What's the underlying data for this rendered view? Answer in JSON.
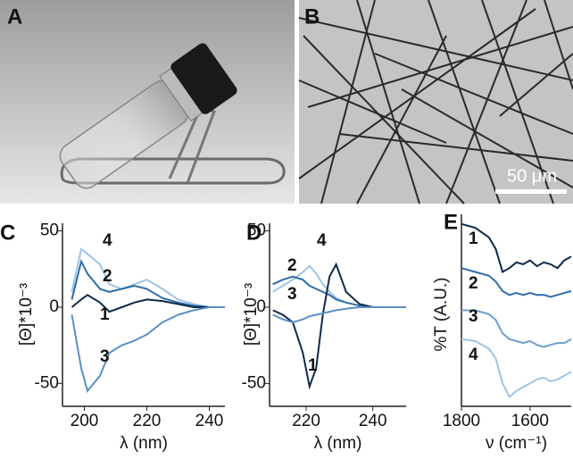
{
  "panel_a": {
    "label": "A"
  },
  "panel_b": {
    "label": "B",
    "scale_bar": "50 μm"
  },
  "chart_data": [
    {
      "type": "line",
      "panel": "C",
      "xlabel": "λ (nm)",
      "ylabel": "[Θ]*10⁻³",
      "xlim": [
        193,
        245
      ],
      "xticks": [
        200,
        220,
        240
      ],
      "ylim": [
        -65,
        55
      ],
      "yticks": [
        50,
        0,
        -50
      ],
      "x": [
        196,
        199,
        201,
        205,
        208,
        212,
        216,
        220,
        225,
        230,
        235,
        240,
        245
      ],
      "series": [
        {
          "name": "4",
          "color": "#9cc4e8",
          "values": [
            10,
            38,
            35,
            28,
            15,
            12,
            15,
            18,
            12,
            5,
            2,
            0,
            0
          ]
        },
        {
          "name": "2",
          "color": "#2f6da8",
          "values": [
            5,
            30,
            22,
            12,
            10,
            12,
            14,
            12,
            6,
            3,
            1,
            0,
            0
          ]
        },
        {
          "name": "1",
          "color": "#0d2a4a",
          "values": [
            0,
            5,
            8,
            3,
            -3,
            0,
            3,
            5,
            4,
            2,
            0,
            0,
            0
          ]
        },
        {
          "name": "3",
          "color": "#5a8fc6",
          "values": [
            -5,
            -40,
            -55,
            -45,
            -30,
            -25,
            -22,
            -18,
            -10,
            -5,
            -2,
            0,
            0
          ]
        }
      ]
    },
    {
      "type": "line",
      "panel": "D",
      "xlabel": "λ (nm)",
      "ylabel": "[Θ]*10⁻³",
      "xlim": [
        209,
        250
      ],
      "xticks": [
        220,
        240
      ],
      "ylim": [
        -65,
        55
      ],
      "yticks": [
        50,
        0,
        -50
      ],
      "x": [
        210,
        213,
        216,
        219,
        221,
        223,
        225,
        227,
        229,
        232,
        236,
        240,
        245,
        250
      ],
      "series": [
        {
          "name": "4",
          "color": "#9cc4e8",
          "values": [
            10,
            14,
            18,
            23,
            27,
            22,
            15,
            10,
            6,
            3,
            1,
            0,
            0,
            0
          ]
        },
        {
          "name": "2",
          "color": "#2f6da8",
          "values": [
            15,
            18,
            20,
            18,
            14,
            12,
            10,
            8,
            5,
            3,
            1,
            0,
            0,
            0
          ]
        },
        {
          "name": "1",
          "color": "#0d2a4a",
          "values": [
            -2,
            -5,
            -10,
            -30,
            -52,
            -40,
            -5,
            20,
            28,
            10,
            2,
            0,
            0,
            0
          ]
        },
        {
          "name": "3",
          "color": "#5a8fc6",
          "values": [
            -5,
            -8,
            -10,
            -8,
            -6,
            -5,
            -4,
            -3,
            -2,
            -1,
            0,
            0,
            0,
            0
          ]
        }
      ]
    },
    {
      "type": "line",
      "panel": "E",
      "xlabel": "ν (cm⁻¹)",
      "ylabel": "%T (A.U.)",
      "xlim": [
        1800,
        1480
      ],
      "xticks": [
        1800,
        1600
      ],
      "ylim": [
        0,
        100
      ],
      "x": [
        1800,
        1760,
        1720,
        1700,
        1680,
        1660,
        1640,
        1620,
        1600,
        1580,
        1560,
        1540,
        1520,
        1500,
        1480
      ],
      "series": [
        {
          "name": "1",
          "color": "#0d2a4a",
          "values": [
            95,
            93,
            88,
            82,
            70,
            72,
            75,
            74,
            76,
            73,
            75,
            74,
            72,
            76,
            78
          ]
        },
        {
          "name": "2",
          "color": "#2f6da8",
          "values": [
            72,
            70,
            68,
            65,
            60,
            58,
            59,
            58,
            59,
            58,
            58,
            57,
            58,
            59,
            60
          ]
        },
        {
          "name": "3",
          "color": "#6a9fd0",
          "values": [
            50,
            50,
            48,
            45,
            38,
            35,
            34,
            33,
            34,
            32,
            31,
            32,
            33,
            33,
            35
          ]
        },
        {
          "name": "4",
          "color": "#9cc4e8",
          "values": [
            35,
            34,
            30,
            25,
            12,
            5,
            8,
            10,
            12,
            14,
            15,
            13,
            14,
            16,
            18
          ]
        }
      ]
    }
  ]
}
